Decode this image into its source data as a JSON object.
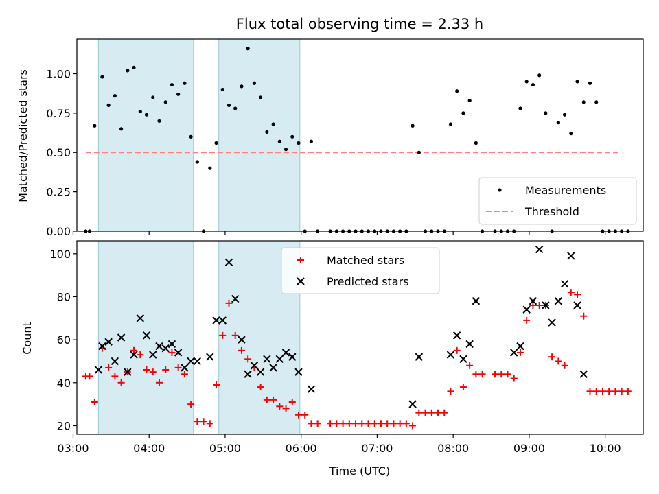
{
  "chart_data": [
    {
      "type": "scatter",
      "title": "Flux total observing time = 2.33 h",
      "xlabel": "",
      "ylabel": "Matched/Predicted stars",
      "xlim": [
        "03:03",
        "10:30"
      ],
      "ylim": [
        0,
        1.22
      ],
      "yticks": [
        "0.00",
        "0.25",
        "0.50",
        "0.75",
        "1.00"
      ],
      "grid": false,
      "legend_position": "lower-right",
      "observing_windows": [
        [
          "03:20",
          "04:35"
        ],
        [
          "04:55",
          "05:59"
        ]
      ],
      "threshold": {
        "name": "Threshold",
        "value": 0.5,
        "x_range": [
          "03:10",
          "10:10"
        ],
        "color": "#ff8080",
        "style": "dashed"
      },
      "series": [
        {
          "name": "Measurements",
          "color": "#000000",
          "points": [
            [
              "03:10",
              0.0
            ],
            [
              "03:13",
              0.0
            ],
            [
              "03:17",
              0.67
            ],
            [
              "03:23",
              0.98
            ],
            [
              "03:28",
              0.8
            ],
            [
              "03:33",
              0.86
            ],
            [
              "03:38",
              0.65
            ],
            [
              "03:43",
              1.02
            ],
            [
              "03:48",
              1.04
            ],
            [
              "03:53",
              0.76
            ],
            [
              "03:58",
              0.74
            ],
            [
              "04:03",
              0.85
            ],
            [
              "04:08",
              0.7
            ],
            [
              "04:13",
              0.82
            ],
            [
              "04:18",
              0.93
            ],
            [
              "04:23",
              0.87
            ],
            [
              "04:28",
              0.94
            ],
            [
              "04:33",
              0.6
            ],
            [
              "04:38",
              0.44
            ],
            [
              "04:43",
              0.0
            ],
            [
              "04:48",
              0.4
            ],
            [
              "04:53",
              0.56
            ],
            [
              "04:58",
              0.9
            ],
            [
              "05:03",
              0.8
            ],
            [
              "05:08",
              0.78
            ],
            [
              "05:13",
              0.92
            ],
            [
              "05:18",
              1.16
            ],
            [
              "05:23",
              0.94
            ],
            [
              "05:28",
              0.85
            ],
            [
              "05:33",
              0.63
            ],
            [
              "05:38",
              0.68
            ],
            [
              "05:43",
              0.57
            ],
            [
              "05:48",
              0.52
            ],
            [
              "05:53",
              0.6
            ],
            [
              "05:58",
              0.56
            ],
            [
              "06:03",
              0.0
            ],
            [
              "06:08",
              0.57
            ],
            [
              "06:13",
              0.0
            ],
            [
              "06:23",
              0.0
            ],
            [
              "06:28",
              0.0
            ],
            [
              "06:33",
              0.0
            ],
            [
              "06:38",
              0.0
            ],
            [
              "06:43",
              0.0
            ],
            [
              "06:48",
              0.0
            ],
            [
              "06:53",
              0.0
            ],
            [
              "06:58",
              0.0
            ],
            [
              "07:03",
              0.0
            ],
            [
              "07:08",
              0.0
            ],
            [
              "07:13",
              0.0
            ],
            [
              "07:18",
              0.0
            ],
            [
              "07:23",
              0.0
            ],
            [
              "07:28",
              0.67
            ],
            [
              "07:33",
              0.5
            ],
            [
              "07:38",
              0.0
            ],
            [
              "07:43",
              0.0
            ],
            [
              "07:48",
              0.0
            ],
            [
              "07:53",
              0.0
            ],
            [
              "07:58",
              0.68
            ],
            [
              "08:03",
              0.89
            ],
            [
              "08:08",
              0.75
            ],
            [
              "08:13",
              0.83
            ],
            [
              "08:18",
              0.56
            ],
            [
              "08:23",
              0.0
            ],
            [
              "08:33",
              0.0
            ],
            [
              "08:38",
              0.0
            ],
            [
              "08:43",
              0.0
            ],
            [
              "08:48",
              0.0
            ],
            [
              "08:53",
              0.78
            ],
            [
              "08:58",
              0.95
            ],
            [
              "09:03",
              0.93
            ],
            [
              "09:08",
              0.99
            ],
            [
              "09:13",
              0.75
            ],
            [
              "09:18",
              0.0
            ],
            [
              "09:23",
              0.69
            ],
            [
              "09:28",
              0.74
            ],
            [
              "09:33",
              0.62
            ],
            [
              "09:38",
              0.95
            ],
            [
              "09:43",
              0.82
            ],
            [
              "09:48",
              0.94
            ],
            [
              "09:53",
              0.82
            ],
            [
              "09:58",
              0.0
            ],
            [
              "10:03",
              0.0
            ],
            [
              "10:08",
              0.0
            ],
            [
              "10:13",
              0.0
            ],
            [
              "10:18",
              0.0
            ]
          ]
        }
      ]
    },
    {
      "type": "scatter",
      "title": "",
      "xlabel": "Time (UTC)",
      "ylabel": "Count",
      "xlim": [
        "03:03",
        "10:30"
      ],
      "ylim": [
        16,
        106
      ],
      "xticks": [
        "03:00",
        "04:00",
        "05:00",
        "06:00",
        "07:00",
        "08:00",
        "09:00",
        "10:00"
      ],
      "yticks": [
        "20",
        "40",
        "60",
        "80",
        "100"
      ],
      "grid": false,
      "legend_position": "top-center",
      "observing_windows": [
        [
          "03:20",
          "04:35"
        ],
        [
          "04:55",
          "05:59"
        ]
      ],
      "series": [
        {
          "name": "Matched stars",
          "color": "#ff0000",
          "marker": "plus",
          "points": [
            [
              "03:10",
              43
            ],
            [
              "03:13",
              43
            ],
            [
              "03:17",
              31
            ],
            [
              "03:23",
              56
            ],
            [
              "03:28",
              47
            ],
            [
              "03:33",
              43
            ],
            [
              "03:38",
              40
            ],
            [
              "03:43",
              45
            ],
            [
              "03:48",
              55
            ],
            [
              "03:53",
              53
            ],
            [
              "03:58",
              46
            ],
            [
              "04:03",
              45
            ],
            [
              "04:08",
              40
            ],
            [
              "04:13",
              46
            ],
            [
              "04:18",
              54
            ],
            [
              "04:23",
              47
            ],
            [
              "04:28",
              44
            ],
            [
              "04:33",
              30
            ],
            [
              "04:38",
              22
            ],
            [
              "04:43",
              22
            ],
            [
              "04:48",
              21
            ],
            [
              "04:53",
              39
            ],
            [
              "04:58",
              62
            ],
            [
              "05:03",
              77
            ],
            [
              "05:08",
              62
            ],
            [
              "05:13",
              55
            ],
            [
              "05:18",
              51
            ],
            [
              "05:23",
              47
            ],
            [
              "05:28",
              38
            ],
            [
              "05:33",
              32
            ],
            [
              "05:38",
              32
            ],
            [
              "05:43",
              29
            ],
            [
              "05:48",
              28
            ],
            [
              "05:53",
              31
            ],
            [
              "05:58",
              25
            ],
            [
              "06:03",
              25
            ],
            [
              "06:08",
              21
            ],
            [
              "06:13",
              21
            ],
            [
              "06:23",
              21
            ],
            [
              "06:28",
              21
            ],
            [
              "06:33",
              21
            ],
            [
              "06:38",
              21
            ],
            [
              "06:43",
              21
            ],
            [
              "06:48",
              21
            ],
            [
              "06:53",
              21
            ],
            [
              "06:58",
              21
            ],
            [
              "07:03",
              21
            ],
            [
              "07:08",
              21
            ],
            [
              "07:13",
              21
            ],
            [
              "07:18",
              21
            ],
            [
              "07:23",
              21
            ],
            [
              "07:28",
              20
            ],
            [
              "07:33",
              26
            ],
            [
              "07:38",
              26
            ],
            [
              "07:43",
              26
            ],
            [
              "07:48",
              26
            ],
            [
              "07:53",
              26
            ],
            [
              "07:58",
              36
            ],
            [
              "08:03",
              55
            ],
            [
              "08:08",
              38
            ],
            [
              "08:13",
              48
            ],
            [
              "08:18",
              44
            ],
            [
              "08:23",
              44
            ],
            [
              "08:33",
              44
            ],
            [
              "08:38",
              44
            ],
            [
              "08:43",
              44
            ],
            [
              "08:48",
              42
            ],
            [
              "08:53",
              54
            ],
            [
              "08:58",
              69
            ],
            [
              "09:03",
              76
            ],
            [
              "09:08",
              76
            ],
            [
              "09:13",
              76
            ],
            [
              "09:18",
              52
            ],
            [
              "09:23",
              50
            ],
            [
              "09:28",
              48
            ],
            [
              "09:33",
              82
            ],
            [
              "09:38",
              81
            ],
            [
              "09:43",
              71
            ],
            [
              "09:48",
              36
            ],
            [
              "09:53",
              36
            ],
            [
              "09:58",
              36
            ],
            [
              "10:03",
              36
            ],
            [
              "10:08",
              36
            ],
            [
              "10:13",
              36
            ],
            [
              "10:18",
              36
            ]
          ]
        },
        {
          "name": "Predicted stars",
          "color": "#000000",
          "marker": "x",
          "points": [
            [
              "03:20",
              46
            ],
            [
              "03:23",
              57
            ],
            [
              "03:28",
              59
            ],
            [
              "03:33",
              50
            ],
            [
              "03:38",
              61
            ],
            [
              "03:43",
              45
            ],
            [
              "03:48",
              53
            ],
            [
              "03:53",
              70
            ],
            [
              "03:58",
              62
            ],
            [
              "04:03",
              53
            ],
            [
              "04:08",
              57
            ],
            [
              "04:13",
              56
            ],
            [
              "04:18",
              58
            ],
            [
              "04:23",
              54
            ],
            [
              "04:28",
              47
            ],
            [
              "04:33",
              50
            ],
            [
              "04:38",
              50
            ],
            [
              "04:48",
              52
            ],
            [
              "04:53",
              69
            ],
            [
              "04:58",
              69
            ],
            [
              "05:03",
              96
            ],
            [
              "05:08",
              79
            ],
            [
              "05:13",
              60
            ],
            [
              "05:18",
              44
            ],
            [
              "05:23",
              48
            ],
            [
              "05:28",
              45
            ],
            [
              "05:33",
              51
            ],
            [
              "05:38",
              47
            ],
            [
              "05:43",
              51
            ],
            [
              "05:48",
              54
            ],
            [
              "05:53",
              52
            ],
            [
              "05:58",
              45
            ],
            [
              "06:08",
              37
            ],
            [
              "07:28",
              30
            ],
            [
              "07:33",
              52
            ],
            [
              "07:58",
              53
            ],
            [
              "08:03",
              62
            ],
            [
              "08:08",
              51
            ],
            [
              "08:13",
              58
            ],
            [
              "08:18",
              78
            ],
            [
              "08:48",
              54
            ],
            [
              "08:53",
              57
            ],
            [
              "08:58",
              74
            ],
            [
              "09:03",
              78
            ],
            [
              "09:08",
              102
            ],
            [
              "09:13",
              76
            ],
            [
              "09:18",
              68
            ],
            [
              "09:23",
              78
            ],
            [
              "09:28",
              86
            ],
            [
              "09:33",
              99
            ],
            [
              "09:38",
              76
            ],
            [
              "09:43",
              44
            ]
          ]
        }
      ]
    }
  ]
}
